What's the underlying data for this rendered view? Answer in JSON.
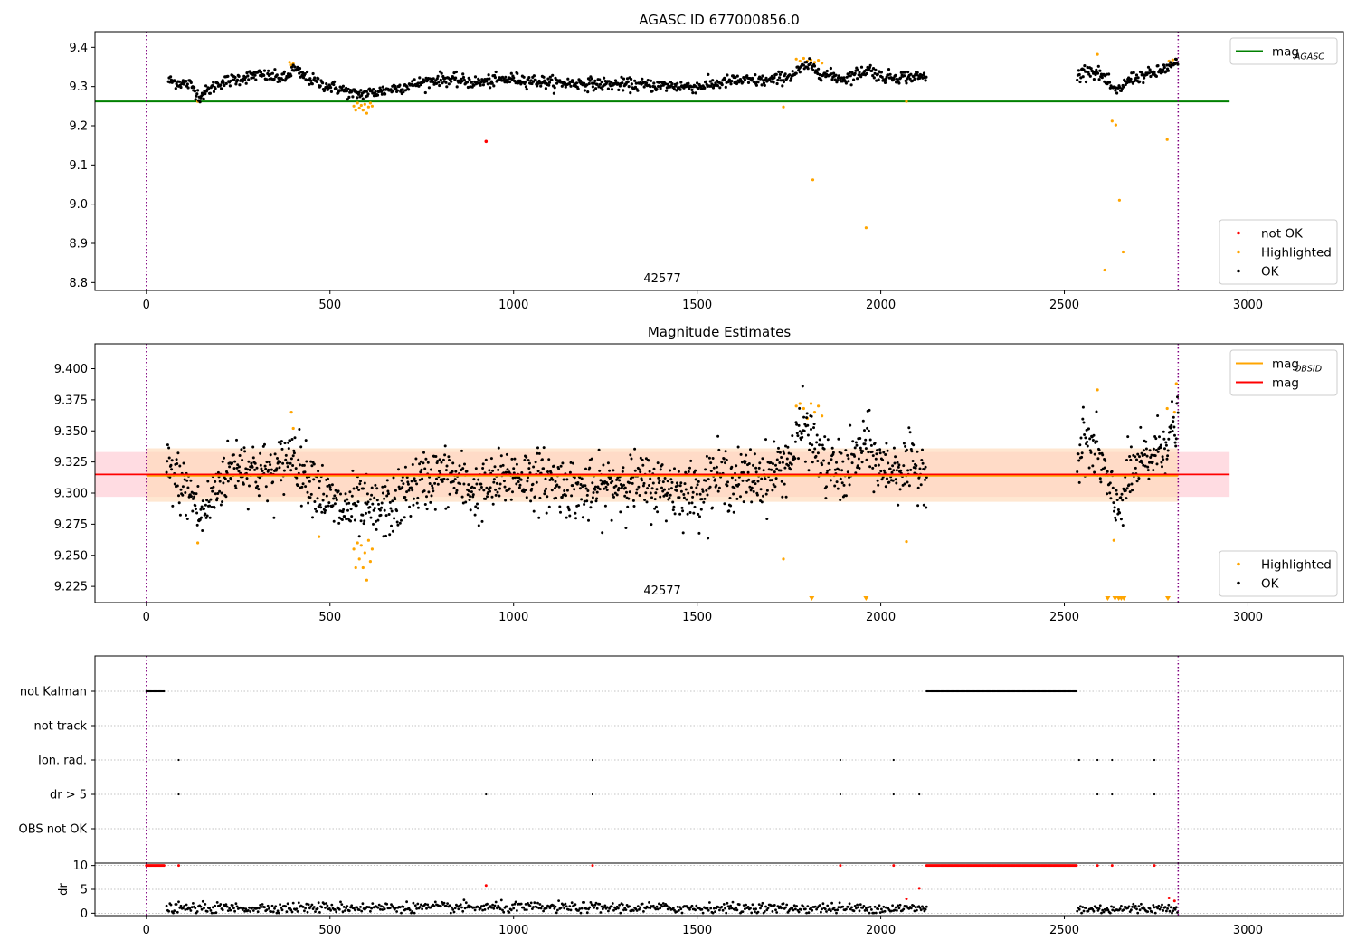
{
  "colors": {
    "ok": "#000000",
    "highlighted": "#ffa500",
    "not_ok": "#ff0000",
    "mag_agasc_line": "#008000",
    "mag_line": "#ff0000",
    "mag_obsid_line": "#ffa500",
    "obs_boundary": "#800080",
    "band_outer": "#ffc0cb",
    "band_inner": "#ffdab9"
  },
  "chart_data": [
    {
      "type": "scatter",
      "title": "AGASC ID 677000856.0",
      "xlabel": "",
      "ylabel": "",
      "xlim": [
        -140,
        3260
      ],
      "ylim": [
        8.78,
        9.44
      ],
      "xticks": [
        0,
        500,
        1000,
        1500,
        2000,
        2500,
        3000
      ],
      "yticks": [
        8.8,
        8.9,
        9.0,
        9.1,
        9.2,
        9.3,
        9.4
      ],
      "ytick_labels": [
        "8.8",
        "8.9",
        "9.0",
        "9.1",
        "9.2",
        "9.3",
        "9.4"
      ],
      "grid": false,
      "obs_boundaries": [
        0,
        2810
      ],
      "obs_label": {
        "text": "42577",
        "x": 1405
      },
      "lines": [
        {
          "name": "mag_AGASC",
          "y": 9.262,
          "x": [
            -140,
            2950
          ]
        }
      ],
      "legends": [
        {
          "placement": "top-right",
          "entries": [
            {
              "label": "mag",
              "sub": "AGASC",
              "kind": "line",
              "color_key": "mag_agasc_line"
            }
          ]
        },
        {
          "placement": "bottom-right",
          "entries": [
            {
              "label": "not OK",
              "kind": "dot",
              "color_key": "not_ok"
            },
            {
              "label": "Highlighted",
              "kind": "dot",
              "color_key": "highlighted"
            },
            {
              "label": "OK",
              "kind": "dot",
              "color_key": "ok"
            }
          ]
        }
      ],
      "ok_segments": [
        {
          "x": [
            60,
            2125
          ],
          "knots": [
            [
              60,
              9.315
            ],
            [
              120,
              9.305
            ],
            [
              145,
              9.275
            ],
            [
              200,
              9.31
            ],
            [
              300,
              9.33
            ],
            [
              380,
              9.32
            ],
            [
              400,
              9.345
            ],
            [
              430,
              9.325
            ],
            [
              480,
              9.305
            ],
            [
              540,
              9.29
            ],
            [
              560,
              9.28
            ],
            [
              620,
              9.285
            ],
            [
              700,
              9.3
            ],
            [
              800,
              9.32
            ],
            [
              900,
              9.31
            ],
            [
              1000,
              9.32
            ],
            [
              1100,
              9.31
            ],
            [
              1300,
              9.305
            ],
            [
              1500,
              9.3
            ],
            [
              1600,
              9.315
            ],
            [
              1700,
              9.315
            ],
            [
              1760,
              9.33
            ],
            [
              1800,
              9.355
            ],
            [
              1850,
              9.33
            ],
            [
              1900,
              9.32
            ],
            [
              1970,
              9.345
            ],
            [
              2000,
              9.325
            ],
            [
              2125,
              9.325
            ]
          ],
          "step": 2.0,
          "noise": 0.008
        },
        {
          "x": [
            2535,
            2810
          ],
          "knots": [
            [
              2535,
              9.325
            ],
            [
              2560,
              9.345
            ],
            [
              2600,
              9.33
            ],
            [
              2640,
              9.285
            ],
            [
              2680,
              9.32
            ],
            [
              2750,
              9.335
            ],
            [
              2810,
              9.36
            ]
          ],
          "step": 2.0,
          "noise": 0.008
        }
      ],
      "highlighted_points": [
        [
          140,
          9.262
        ],
        [
          390,
          9.362
        ],
        [
          395,
          9.355
        ],
        [
          400,
          9.358
        ],
        [
          565,
          9.25
        ],
        [
          570,
          9.24
        ],
        [
          575,
          9.258
        ],
        [
          580,
          9.245
        ],
        [
          585,
          9.252
        ],
        [
          590,
          9.24
        ],
        [
          595,
          9.255
        ],
        [
          600,
          9.232
        ],
        [
          605,
          9.248
        ],
        [
          610,
          9.258
        ],
        [
          615,
          9.25
        ],
        [
          1735,
          9.248
        ],
        [
          1770,
          9.37
        ],
        [
          1780,
          9.365
        ],
        [
          1790,
          9.372
        ],
        [
          1800,
          9.365
        ],
        [
          1810,
          9.368
        ],
        [
          1820,
          9.362
        ],
        [
          1830,
          9.367
        ],
        [
          1840,
          9.36
        ],
        [
          1815,
          9.062
        ],
        [
          1960,
          8.94
        ],
        [
          2070,
          9.262
        ],
        [
          2590,
          9.382
        ],
        [
          2610,
          8.832
        ],
        [
          2630,
          9.212
        ],
        [
          2640,
          9.202
        ],
        [
          2650,
          9.01
        ],
        [
          2660,
          8.878
        ],
        [
          2780,
          9.165
        ],
        [
          2785,
          9.365
        ],
        [
          2790,
          9.36
        ],
        [
          2795,
          9.368
        ]
      ],
      "not_ok_points": [
        [
          925,
          9.16
        ]
      ]
    },
    {
      "type": "scatter",
      "title": "Magnitude Estimates",
      "xlabel": "",
      "ylabel": "",
      "xlim": [
        -140,
        3260
      ],
      "ylim": [
        9.212,
        9.42
      ],
      "xticks": [
        0,
        500,
        1000,
        1500,
        2000,
        2500,
        3000
      ],
      "yticks": [
        9.225,
        9.25,
        9.275,
        9.3,
        9.325,
        9.35,
        9.375,
        9.4
      ],
      "ytick_labels": [
        "9.225",
        "9.250",
        "9.275",
        "9.300",
        "9.325",
        "9.350",
        "9.375",
        "9.400"
      ],
      "grid": false,
      "obs_boundaries": [
        0,
        2810
      ],
      "obs_label": {
        "text": "42577",
        "x": 1405
      },
      "lines": [
        {
          "name": "mag",
          "y": 9.315,
          "x": [
            -140,
            2950
          ]
        },
        {
          "name": "mag_OBSID",
          "y": 9.314,
          "x": [
            0,
            2810
          ]
        }
      ],
      "bands": [
        {
          "name": "mag error",
          "y": [
            9.297,
            9.333
          ],
          "x": [
            -140,
            2950
          ]
        },
        {
          "name": "mag_OBSID error",
          "y": [
            9.293,
            9.336
          ],
          "x": [
            0,
            2810
          ]
        }
      ],
      "legends": [
        {
          "placement": "top-right",
          "entries": [
            {
              "label": "mag",
              "sub": "OBSID",
              "kind": "line",
              "color_key": "mag_obsid_line"
            },
            {
              "label": "mag",
              "kind": "line",
              "color_key": "mag_line"
            }
          ]
        },
        {
          "placement": "bottom-right",
          "entries": [
            {
              "label": "Highlighted",
              "kind": "dot",
              "color_key": "highlighted"
            },
            {
              "label": "OK",
              "kind": "dot",
              "color_key": "ok"
            }
          ]
        }
      ],
      "ok_segments": [
        {
          "x": [
            55,
            2125
          ],
          "knots": [
            [
              55,
              9.32
            ],
            [
              100,
              9.305
            ],
            [
              130,
              9.295
            ],
            [
              145,
              9.28
            ],
            [
              170,
              9.29
            ],
            [
              200,
              9.31
            ],
            [
              250,
              9.325
            ],
            [
              300,
              9.318
            ],
            [
              350,
              9.315
            ],
            [
              400,
              9.335
            ],
            [
              420,
              9.32
            ],
            [
              460,
              9.31
            ],
            [
              490,
              9.295
            ],
            [
              540,
              9.285
            ],
            [
              560,
              9.29
            ],
            [
              620,
              9.285
            ],
            [
              680,
              9.29
            ],
            [
              720,
              9.305
            ],
            [
              800,
              9.315
            ],
            [
              850,
              9.31
            ],
            [
              900,
              9.3
            ],
            [
              1000,
              9.315
            ],
            [
              1100,
              9.31
            ],
            [
              1200,
              9.3
            ],
            [
              1300,
              9.31
            ],
            [
              1400,
              9.305
            ],
            [
              1500,
              9.3
            ],
            [
              1550,
              9.315
            ],
            [
              1600,
              9.31
            ],
            [
              1700,
              9.315
            ],
            [
              1760,
              9.33
            ],
            [
              1790,
              9.355
            ],
            [
              1850,
              9.32
            ],
            [
              1900,
              9.315
            ],
            [
              1960,
              9.34
            ],
            [
              2000,
              9.32
            ],
            [
              2125,
              9.32
            ]
          ],
          "step": 1.5,
          "noise": 0.012
        },
        {
          "x": [
            2535,
            2810
          ],
          "knots": [
            [
              2535,
              9.325
            ],
            [
              2555,
              9.345
            ],
            [
              2600,
              9.325
            ],
            [
              2640,
              9.285
            ],
            [
              2680,
              9.315
            ],
            [
              2740,
              9.33
            ],
            [
              2810,
              9.355
            ]
          ],
          "step": 1.5,
          "noise": 0.012
        }
      ],
      "highlighted_points": [
        [
          140,
          9.26
        ],
        [
          395,
          9.365
        ],
        [
          400,
          9.352
        ],
        [
          470,
          9.265
        ],
        [
          565,
          9.255
        ],
        [
          570,
          9.24
        ],
        [
          575,
          9.26
        ],
        [
          580,
          9.247
        ],
        [
          585,
          9.258
        ],
        [
          590,
          9.24
        ],
        [
          595,
          9.252
        ],
        [
          600,
          9.23
        ],
        [
          605,
          9.262
        ],
        [
          610,
          9.245
        ],
        [
          615,
          9.255
        ],
        [
          1735,
          9.247
        ],
        [
          1770,
          9.37
        ],
        [
          1780,
          9.372
        ],
        [
          1790,
          9.368
        ],
        [
          1800,
          9.36
        ],
        [
          1810,
          9.372
        ],
        [
          1820,
          9.365
        ],
        [
          1830,
          9.37
        ],
        [
          1840,
          9.362
        ],
        [
          2070,
          9.261
        ],
        [
          2590,
          9.383
        ],
        [
          2635,
          9.262
        ],
        [
          2780,
          9.368
        ],
        [
          2800,
          9.365
        ],
        [
          2805,
          9.388
        ]
      ],
      "off_scale_markers": [
        1812,
        1960,
        2618,
        2638,
        2648,
        2655,
        2662,
        2782
      ]
    },
    {
      "type": "scatter",
      "title": "",
      "xlabel": "",
      "ylabel": "",
      "xlim": [
        -140,
        3260
      ],
      "xticks": [
        0,
        500,
        1000,
        1500,
        2000,
        2500,
        3000
      ],
      "grid": true,
      "obs_boundaries": [
        0,
        2810
      ],
      "flag_rows": [
        "not Kalman",
        "not track",
        "Ion. rad.",
        "dr > 5",
        "OBS not OK"
      ],
      "flags": {
        "not Kalman": {
          "ranges": [
            [
              0,
              50
            ],
            [
              2125,
              2535
            ]
          ],
          "points": []
        },
        "not track": {
          "ranges": [],
          "points": []
        },
        "Ion. rad.": {
          "ranges": [],
          "points": [
            88,
            1215,
            1890,
            2035,
            2540,
            2590,
            2630,
            2745
          ]
        },
        "dr > 5": {
          "ranges": [],
          "points": [
            88,
            925,
            1215,
            1890,
            2035,
            2105,
            2590,
            2630,
            2745
          ]
        },
        "OBS not OK": {
          "ranges": [],
          "points": []
        }
      }
    },
    {
      "type": "scatter",
      "title": "",
      "xlabel": "",
      "ylabel": "dr",
      "xlim": [
        -140,
        3260
      ],
      "ylim": [
        -0.5,
        10.5
      ],
      "xticks": [
        0,
        500,
        1000,
        1500,
        2000,
        2500,
        3000
      ],
      "yticks": [
        0,
        5,
        10
      ],
      "ytick_labels": [
        "0",
        "5",
        "10"
      ],
      "grid": true,
      "obs_boundaries": [
        0,
        2810
      ],
      "ok_segments": [
        {
          "x": [
            55,
            2125
          ],
          "knots": [
            [
              55,
              1.0
            ],
            [
              500,
              1.2
            ],
            [
              1000,
              1.2
            ],
            [
              1500,
              1.1
            ],
            [
              2125,
              1.0
            ]
          ],
          "step": 3.0,
          "noise": 0.55
        },
        {
          "x": [
            2535,
            2810
          ],
          "knots": [
            [
              2535,
              0.8
            ],
            [
              2810,
              1.1
            ]
          ],
          "step": 3.0,
          "noise": 0.55
        }
      ],
      "not_ok_ranges": [
        [
          0,
          50
        ],
        [
          2125,
          2535
        ]
      ],
      "not_ok_points": [
        [
          88,
          10
        ],
        [
          925,
          5.8
        ],
        [
          1215,
          10
        ],
        [
          1890,
          10
        ],
        [
          2035,
          10
        ],
        [
          2070,
          3.0
        ],
        [
          2105,
          5.2
        ],
        [
          2590,
          10
        ],
        [
          2630,
          10
        ],
        [
          2745,
          10
        ],
        [
          2785,
          3.2
        ],
        [
          2800,
          2.6
        ]
      ]
    }
  ]
}
